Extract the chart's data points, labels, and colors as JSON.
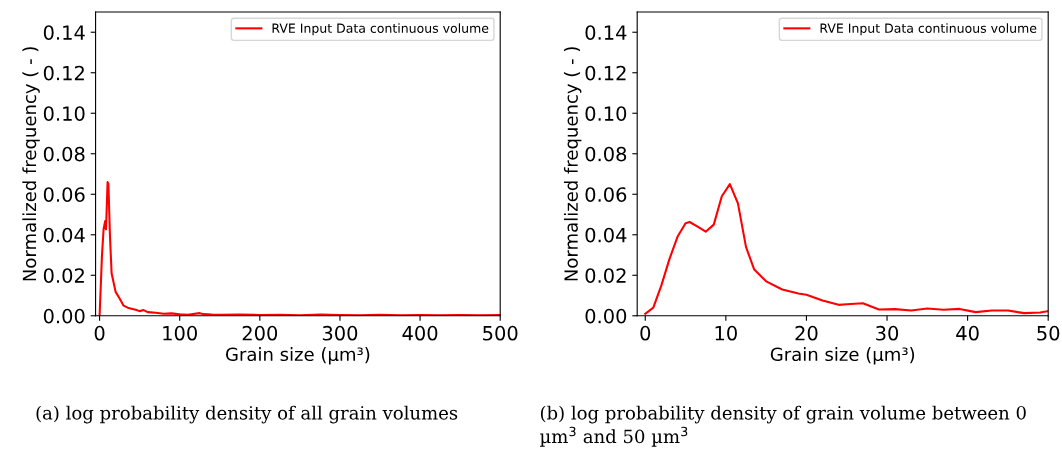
{
  "chart_data": [
    {
      "type": "line",
      "xlabel": "Grain size (µm³)",
      "ylabel": "Normalized frequency ( - )",
      "legend": "top right",
      "grid": false,
      "xlim": [
        -5,
        500
      ],
      "ylim": [
        0,
        0.15
      ],
      "xticks": [
        0,
        100,
        200,
        300,
        400,
        500
      ],
      "yticks": [
        {
          "value": 0,
          "label": "0.00"
        },
        {
          "value": 0.02,
          "label": "0.02"
        },
        {
          "value": 0.04,
          "label": "0.04"
        },
        {
          "value": 0.06,
          "label": "0.06"
        },
        {
          "value": 0.08,
          "label": "0.08"
        },
        {
          "value": 0.1,
          "label": "0.10"
        },
        {
          "value": 0.12,
          "label": "0.12"
        },
        {
          "value": 0.14,
          "label": "0.14"
        }
      ],
      "series": [
        {
          "name": "RVE Input Data continuous volume",
          "color": "#ff0000",
          "x": [
            0,
            3,
            5,
            7,
            8,
            10,
            11,
            13,
            15,
            20,
            25,
            30,
            35,
            40,
            45,
            50,
            55,
            60,
            70,
            80,
            90,
            100,
            110,
            125,
            130,
            140,
            150,
            175,
            200,
            225,
            250,
            275,
            300,
            325,
            350,
            375,
            400,
            425,
            450,
            475,
            500
          ],
          "values": [
            0.0,
            0.03,
            0.0427,
            0.0468,
            0.0427,
            0.066,
            0.065,
            0.039,
            0.021,
            0.0118,
            0.0085,
            0.005,
            0.004,
            0.0035,
            0.003,
            0.0023,
            0.0028,
            0.0018,
            0.0015,
            0.001,
            0.0012,
            0.0007,
            0.0005,
            0.0013,
            0.0008,
            0.0006,
            0.0005,
            0.0006,
            0.0004,
            0.0005,
            0.0003,
            0.0006,
            0.0004,
            0.0003,
            0.0005,
            0.0003,
            0.0004,
            0.0003,
            0.0004,
            0.0003,
            0.0004
          ]
        }
      ],
      "annotations": [
        "(a) log probability density of all grain volumes"
      ]
    },
    {
      "type": "line",
      "xlabel": "Grain size (µm³)",
      "ylabel": "Normalized frequency ( - )",
      "legend": "top right",
      "grid": false,
      "xlim": [
        -1,
        50
      ],
      "ylim": [
        0,
        0.15
      ],
      "xticks": [
        0,
        10,
        20,
        30,
        40,
        50
      ],
      "yticks": [
        {
          "value": 0,
          "label": "0.00"
        },
        {
          "value": 0.02,
          "label": "0.02"
        },
        {
          "value": 0.04,
          "label": "0.04"
        },
        {
          "value": 0.06,
          "label": "0.06"
        },
        {
          "value": 0.08,
          "label": "0.08"
        },
        {
          "value": 0.1,
          "label": "0.10"
        },
        {
          "value": 0.12,
          "label": "0.12"
        },
        {
          "value": 0.14,
          "label": "0.14"
        }
      ],
      "series": [
        {
          "name": "RVE Input Data continuous volume",
          "color": "#ff0000",
          "x": [
            0,
            1,
            2,
            3,
            4,
            5,
            5.5,
            6.5,
            7.5,
            8.5,
            9.5,
            10.5,
            11.5,
            12.5,
            13.5,
            15,
            17,
            19,
            20,
            22,
            24,
            25,
            27,
            29,
            31,
            33,
            35,
            37,
            39,
            41,
            43,
            45,
            47,
            49,
            50
          ],
          "values": [
            0.001,
            0.004,
            0.015,
            0.028,
            0.039,
            0.0457,
            0.0463,
            0.044,
            0.0415,
            0.045,
            0.059,
            0.065,
            0.0555,
            0.034,
            0.023,
            0.017,
            0.013,
            0.011,
            0.0104,
            0.0075,
            0.0054,
            0.0057,
            0.0062,
            0.0031,
            0.0033,
            0.0026,
            0.0036,
            0.003,
            0.0034,
            0.0018,
            0.0026,
            0.0026,
            0.0013,
            0.0016,
            0.0023
          ]
        }
      ],
      "annotations": [
        "(b) log probability density of grain volume between 0 µm$^{3}$ and 50 µm$^{3}$"
      ]
    }
  ]
}
